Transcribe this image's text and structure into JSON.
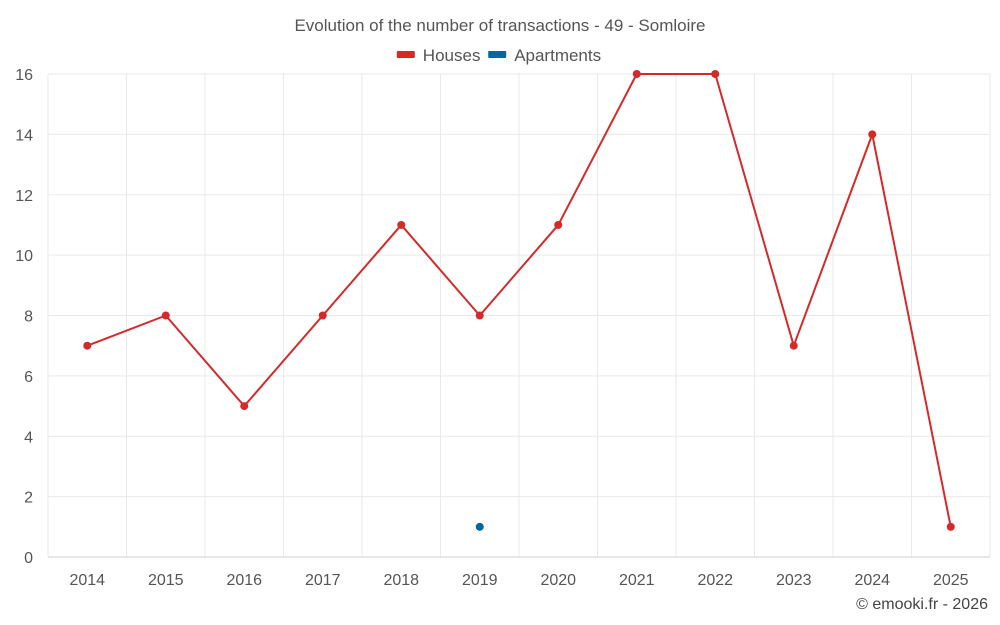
{
  "chart_data": {
    "type": "line",
    "title": "Evolution of the number of transactions - 49 - Somloire",
    "categories": [
      "2014",
      "2015",
      "2016",
      "2017",
      "2018",
      "2019",
      "2020",
      "2021",
      "2022",
      "2023",
      "2024",
      "2025"
    ],
    "series": [
      {
        "name": "Houses",
        "color": "#d42a2a",
        "values": [
          7,
          8,
          5,
          8,
          11,
          8,
          11,
          16,
          16,
          7,
          14,
          1
        ]
      },
      {
        "name": "Apartments",
        "color": "#00689c",
        "values": [
          null,
          null,
          null,
          null,
          null,
          1,
          null,
          null,
          null,
          null,
          null,
          null
        ]
      }
    ],
    "ylim": [
      0,
      16
    ],
    "yticks": [
      0,
      2,
      4,
      6,
      8,
      10,
      12,
      14,
      16
    ],
    "grid": true,
    "legend_position": "top-center"
  },
  "credit": "© emooki.fr - 2026"
}
